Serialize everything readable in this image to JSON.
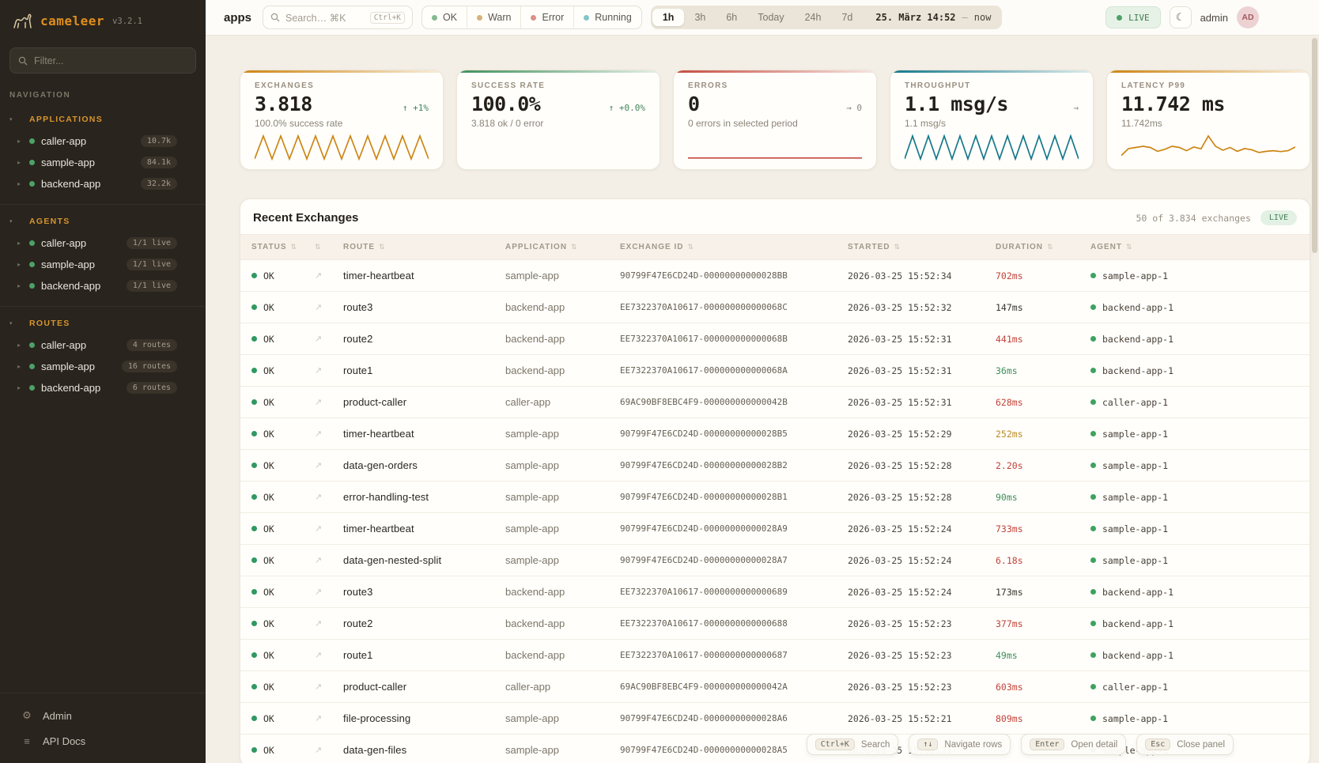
{
  "icons": {
    "moon": "☾",
    "chevron": "▸",
    "caret": "▾",
    "sort": "⇅",
    "open": "↗",
    "gear": "⚙",
    "list": "≡"
  },
  "sidebar": {
    "logo": {
      "name": "cameleer",
      "version": "v3.2.1"
    },
    "filter_placeholder": "Filter...",
    "nav_label": "NAVIGATION",
    "sections": [
      {
        "label": "APPLICATIONS",
        "items": [
          {
            "name": "caller-app",
            "badge": "10.7k"
          },
          {
            "name": "sample-app",
            "badge": "84.1k"
          },
          {
            "name": "backend-app",
            "badge": "32.2k"
          }
        ]
      },
      {
        "label": "AGENTS",
        "items": [
          {
            "name": "caller-app",
            "badge": "1/1 live"
          },
          {
            "name": "sample-app",
            "badge": "1/1 live"
          },
          {
            "name": "backend-app",
            "badge": "1/1 live"
          }
        ]
      },
      {
        "label": "ROUTES",
        "items": [
          {
            "name": "caller-app",
            "badge": "4 routes"
          },
          {
            "name": "sample-app",
            "badge": "16 routes"
          },
          {
            "name": "backend-app",
            "badge": "6 routes"
          }
        ]
      }
    ],
    "footer": [
      {
        "label": "Admin",
        "icon": "gear"
      },
      {
        "label": "API Docs",
        "icon": "list"
      }
    ]
  },
  "topbar": {
    "title": "apps",
    "search": {
      "placeholder": "Search… ⌘K",
      "shortcut": "Ctrl+K"
    },
    "status_filters": [
      {
        "label": "OK",
        "color": "#84b98e"
      },
      {
        "label": "Warn",
        "color": "#d9b177"
      },
      {
        "label": "Error",
        "color": "#db9088"
      },
      {
        "label": "Running",
        "color": "#84c5cb"
      }
    ],
    "time_ranges": [
      {
        "label": "1h",
        "active": true
      },
      {
        "label": "3h",
        "active": false
      },
      {
        "label": "6h",
        "active": false
      },
      {
        "label": "Today",
        "active": false
      },
      {
        "label": "24h",
        "active": false
      },
      {
        "label": "7d",
        "active": false
      }
    ],
    "time_display": {
      "date": "25. März 14:52",
      "separator": "–",
      "end": "now"
    },
    "live_label": "LIVE",
    "user": {
      "name": "admin",
      "initials": "AD"
    }
  },
  "kpi_cards": [
    {
      "label": "EXCHANGES",
      "value": "3.818",
      "trend": "↑ +1%",
      "trend_color": "#43855a",
      "sub": "100.0% success rate",
      "accent": "#cd8512",
      "sparkline": [
        0,
        1,
        0,
        1,
        0,
        1,
        0,
        1,
        0,
        1,
        0,
        1,
        0,
        1,
        0,
        1,
        0,
        1,
        0,
        1,
        0
      ]
    },
    {
      "label": "SUCCESS RATE",
      "value": "100.0%",
      "trend": "↑ +0.0%",
      "trend_color": "#43855a",
      "sub": "3.818 ok / 0 error",
      "accent": "#3f8f5c",
      "sparkline": null
    },
    {
      "label": "ERRORS",
      "value": "0",
      "trend": "→ 0",
      "trend_color": "#8d8578",
      "sub": "0 errors in selected period",
      "accent": "#c44b3f",
      "sparkline": [
        0.04,
        0.04
      ]
    },
    {
      "label": "THROUGHPUT",
      "value": "1.1 msg/s",
      "trend": "→",
      "trend_color": "#8d8578",
      "sub": "1.1 msg/s",
      "accent": "#15788c",
      "sparkline": [
        0,
        1,
        0,
        1,
        0,
        1,
        0,
        1,
        0,
        1,
        0,
        1,
        0,
        1,
        0,
        1,
        0,
        1,
        0,
        1,
        0,
        1,
        0
      ]
    },
    {
      "label": "LATENCY P99",
      "value": "11.742 ms",
      "trend": "",
      "trend_color": "#8d8578",
      "sub": "11.742ms",
      "accent": "#cd8512",
      "sparkline": [
        0.15,
        0.45,
        0.5,
        0.55,
        0.5,
        0.33,
        0.42,
        0.55,
        0.5,
        0.36,
        0.52,
        0.44,
        1.0,
        0.55,
        0.38,
        0.5,
        0.33,
        0.45,
        0.4,
        0.28,
        0.33,
        0.36,
        0.32,
        0.36,
        0.52
      ]
    }
  ],
  "table": {
    "title": "Recent Exchanges",
    "summary": "50 of 3.834 exchanges",
    "live_label": "LIVE",
    "columns": [
      "STATUS",
      "",
      "ROUTE",
      "APPLICATION",
      "EXCHANGE ID",
      "STARTED",
      "DURATION",
      "AGENT"
    ],
    "duration_colors": {
      "red": "#c24238",
      "green": "#3f8e5b",
      "amber": "#bb8b25",
      "neutral": "#3a342c"
    },
    "rows": [
      {
        "status": "OK",
        "route": "timer-heartbeat",
        "app": "sample-app",
        "id": "90799F47E6CD24D-00000000000028BB",
        "started": "2026-03-25 15:52:34",
        "duration": "702ms",
        "dcolor": "red",
        "agent": "sample-app-1"
      },
      {
        "status": "OK",
        "route": "route3",
        "app": "backend-app",
        "id": "EE7322370A10617-000000000000068C",
        "started": "2026-03-25 15:52:32",
        "duration": "147ms",
        "dcolor": "neutral",
        "agent": "backend-app-1"
      },
      {
        "status": "OK",
        "route": "route2",
        "app": "backend-app",
        "id": "EE7322370A10617-000000000000068B",
        "started": "2026-03-25 15:52:31",
        "duration": "441ms",
        "dcolor": "red",
        "agent": "backend-app-1"
      },
      {
        "status": "OK",
        "route": "route1",
        "app": "backend-app",
        "id": "EE7322370A10617-000000000000068A",
        "started": "2026-03-25 15:52:31",
        "duration": "36ms",
        "dcolor": "green",
        "agent": "backend-app-1"
      },
      {
        "status": "OK",
        "route": "product-caller",
        "app": "caller-app",
        "id": "69AC90BF8EBC4F9-000000000000042B",
        "started": "2026-03-25 15:52:31",
        "duration": "628ms",
        "dcolor": "red",
        "agent": "caller-app-1"
      },
      {
        "status": "OK",
        "route": "timer-heartbeat",
        "app": "sample-app",
        "id": "90799F47E6CD24D-00000000000028B5",
        "started": "2026-03-25 15:52:29",
        "duration": "252ms",
        "dcolor": "amber",
        "agent": "sample-app-1"
      },
      {
        "status": "OK",
        "route": "data-gen-orders",
        "app": "sample-app",
        "id": "90799F47E6CD24D-00000000000028B2",
        "started": "2026-03-25 15:52:28",
        "duration": "2.20s",
        "dcolor": "red",
        "agent": "sample-app-1"
      },
      {
        "status": "OK",
        "route": "error-handling-test",
        "app": "sample-app",
        "id": "90799F47E6CD24D-00000000000028B1",
        "started": "2026-03-25 15:52:28",
        "duration": "90ms",
        "dcolor": "green",
        "agent": "sample-app-1"
      },
      {
        "status": "OK",
        "route": "timer-heartbeat",
        "app": "sample-app",
        "id": "90799F47E6CD24D-00000000000028A9",
        "started": "2026-03-25 15:52:24",
        "duration": "733ms",
        "dcolor": "red",
        "agent": "sample-app-1"
      },
      {
        "status": "OK",
        "route": "data-gen-nested-split",
        "app": "sample-app",
        "id": "90799F47E6CD24D-00000000000028A7",
        "started": "2026-03-25 15:52:24",
        "duration": "6.18s",
        "dcolor": "red",
        "agent": "sample-app-1"
      },
      {
        "status": "OK",
        "route": "route3",
        "app": "backend-app",
        "id": "EE7322370A10617-0000000000000689",
        "started": "2026-03-25 15:52:24",
        "duration": "173ms",
        "dcolor": "neutral",
        "agent": "backend-app-1"
      },
      {
        "status": "OK",
        "route": "route2",
        "app": "backend-app",
        "id": "EE7322370A10617-0000000000000688",
        "started": "2026-03-25 15:52:23",
        "duration": "377ms",
        "dcolor": "red",
        "agent": "backend-app-1"
      },
      {
        "status": "OK",
        "route": "route1",
        "app": "backend-app",
        "id": "EE7322370A10617-0000000000000687",
        "started": "2026-03-25 15:52:23",
        "duration": "49ms",
        "dcolor": "green",
        "agent": "backend-app-1"
      },
      {
        "status": "OK",
        "route": "product-caller",
        "app": "caller-app",
        "id": "69AC90BF8EBC4F9-000000000000042A",
        "started": "2026-03-25 15:52:23",
        "duration": "603ms",
        "dcolor": "red",
        "agent": "caller-app-1"
      },
      {
        "status": "OK",
        "route": "file-processing",
        "app": "sample-app",
        "id": "90799F47E6CD24D-00000000000028A6",
        "started": "2026-03-25 15:52:21",
        "duration": "809ms",
        "dcolor": "red",
        "agent": "sample-app-1"
      },
      {
        "status": "OK",
        "route": "data-gen-files",
        "app": "sample-app",
        "id": "90799F47E6CD24D-00000000000028A5",
        "started": "2026-03-25 15:52:21",
        "duration": "",
        "dcolor": "neutral",
        "agent": "sample-app-1"
      }
    ]
  },
  "shortcuts": [
    {
      "key": "Ctrl+K",
      "label": "Search"
    },
    {
      "key": "↑↓",
      "label": "Navigate rows"
    },
    {
      "key": "Enter",
      "label": "Open detail"
    },
    {
      "key": "Esc",
      "label": "Close panel"
    }
  ]
}
